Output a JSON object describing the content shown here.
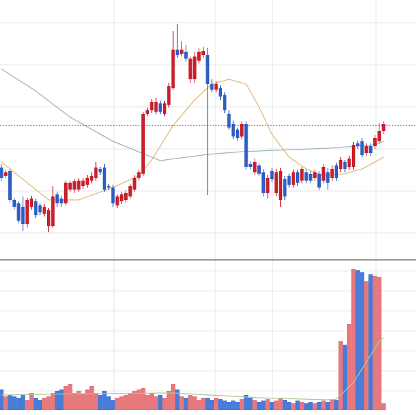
{
  "chart_data": [
    {
      "type": "candlestick",
      "ylim": [
        23,
        400
      ],
      "up_color": "#c8202c",
      "down_color": "#2f5fc4",
      "open": [
        157,
        145,
        152,
        110,
        105,
        100,
        75,
        100,
        108,
        102,
        90,
        72,
        72,
        118,
        112,
        105,
        125,
        125,
        125,
        130,
        132,
        138,
        142,
        155,
        157,
        130,
        128,
        102,
        108,
        110,
        115,
        125,
        142,
        148,
        235,
        240,
        238,
        250,
        235,
        248,
        272,
        328,
        322,
        325,
        285,
        285,
        312,
        320,
        320,
        278,
        270,
        272,
        262,
        235,
        220,
        212,
        202,
        220,
        162,
        150,
        160,
        150,
        120,
        152,
        120,
        110,
        140,
        145,
        132,
        150,
        138,
        150,
        148,
        142,
        148,
        138,
        150,
        142,
        160,
        155,
        165,
        158,
        158,
        192,
        195,
        178,
        188,
        188,
        195,
        210
      ],
      "high": [
        162,
        153,
        155,
        113,
        108,
        115,
        113,
        116,
        112,
        105,
        104,
        98,
        130,
        122,
        116,
        138,
        138,
        140,
        142,
        142,
        146,
        150,
        165,
        158,
        162,
        133,
        132,
        118,
        122,
        124,
        133,
        146,
        154,
        238,
        244,
        256,
        258,
        254,
        254,
        280,
        355,
        365,
        340,
        335,
        318,
        325,
        330,
        332,
        330,
        285,
        282,
        276,
        266,
        240,
        225,
        215,
        224,
        224,
        166,
        170,
        164,
        155,
        146,
        156,
        155,
        156,
        145,
        148,
        154,
        154,
        158,
        154,
        152,
        154,
        152,
        162,
        156,
        160,
        164,
        172,
        168,
        174,
        194,
        196,
        200,
        192,
        192,
        204,
        222,
        224
      ],
      "low": [
        138,
        142,
        106,
        96,
        76,
        65,
        70,
        96,
        84,
        88,
        86,
        63,
        70,
        100,
        100,
        102,
        122,
        120,
        122,
        126,
        128,
        134,
        138,
        146,
        122,
        125,
        100,
        98,
        104,
        106,
        112,
        122,
        138,
        145,
        232,
        236,
        234,
        234,
        232,
        244,
        270,
        316,
        318,
        310,
        280,
        280,
        308,
        316,
        117,
        266,
        266,
        255,
        236,
        212,
        198,
        196,
        198,
        154,
        154,
        146,
        144,
        115,
        112,
        136,
        116,
        100,
        110,
        128,
        128,
        130,
        134,
        134,
        134,
        138,
        124,
        134,
        125,
        138,
        138,
        150,
        150,
        154,
        154,
        184,
        172,
        174,
        174,
        184,
        192,
        206
      ],
      "close": [
        142,
        150,
        110,
        100,
        80,
        75,
        110,
        112,
        88,
        92,
        100,
        95,
        115,
        105,
        105,
        135,
        135,
        137,
        138,
        138,
        142,
        145,
        157,
        150,
        125,
        128,
        105,
        115,
        118,
        120,
        130,
        142,
        150,
        235,
        240,
        252,
        252,
        238,
        250,
        275,
        328,
        320,
        328,
        315,
        315,
        318,
        325,
        326,
        278,
        270,
        278,
        260,
        240,
        215,
        202,
        200,
        220,
        158,
        158,
        165,
        148,
        120,
        142,
        140,
        150,
        152,
        115,
        132,
        150,
        135,
        155,
        138,
        138,
        150,
        128,
        158,
        135,
        155,
        142,
        168,
        155,
        170,
        190,
        188,
        175,
        188,
        178,
        200,
        210,
        220
      ],
      "price_line": 218,
      "price_line_color": "#b01818",
      "series": [
        {
          "color": "#e3b97c",
          "x": [
            0,
            5,
            11,
            18,
            26,
            32,
            35,
            40,
            45,
            49,
            53,
            57,
            60,
            63,
            67,
            71,
            75,
            80,
            84,
            87,
            89
          ],
          "values": [
            165,
            140,
            110,
            110,
            128,
            145,
            168,
            218,
            255,
            278,
            285,
            278,
            245,
            205,
            172,
            155,
            145,
            148,
            155,
            165,
            172
          ]
        },
        {
          "color": "#9ab6bd",
          "x": [
            0,
            8,
            16,
            26,
            37,
            48,
            56,
            76,
            87,
            89
          ],
          "values": [
            300,
            268,
            230,
            195,
            167,
            176,
            180,
            185,
            190,
            195
          ]
        }
      ]
    },
    {
      "type": "bar",
      "ylim": [
        0,
        217
      ],
      "up_color": "#e7787c",
      "down_color": "#4a7bd6",
      "values": [
        30,
        20,
        22,
        20,
        18,
        22,
        15,
        25,
        18,
        15,
        18,
        20,
        25,
        28,
        30,
        35,
        38,
        25,
        28,
        24,
        30,
        35,
        25,
        22,
        28,
        20,
        15,
        18,
        20,
        22,
        25,
        28,
        30,
        32,
        22,
        25,
        20,
        22,
        18,
        28,
        38,
        30,
        20,
        18,
        22,
        20,
        15,
        18,
        18,
        15,
        18,
        16,
        14,
        12,
        14,
        12,
        16,
        22,
        18,
        15,
        12,
        14,
        16,
        12,
        14,
        18,
        15,
        12,
        10,
        14,
        12,
        10,
        12,
        10,
        12,
        14,
        12,
        15,
        15,
        100,
        95,
        125,
        205,
        203,
        200,
        187,
        197,
        195,
        193,
        10
      ],
      "series": [
        {
          "color": "#a9c99b",
          "x": [
            0,
            20,
            40,
            60,
            76,
            78,
            82,
            86,
            88,
            89
          ],
          "values": [
            22,
            24,
            25,
            18,
            15,
            16,
            40,
            80,
            100,
            105
          ]
        }
      ]
    }
  ]
}
